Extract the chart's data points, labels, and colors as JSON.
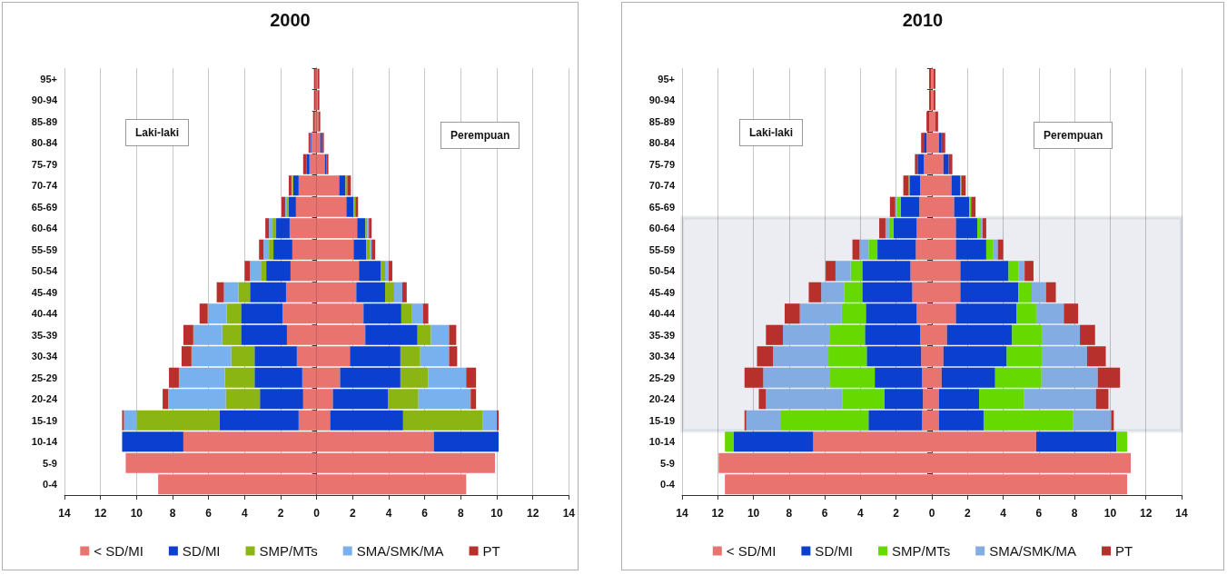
{
  "chart_data": [
    {
      "type": "bar",
      "title": "2000",
      "orientation": "horizontal",
      "stacked": true,
      "legend": "bottom",
      "grid": "x",
      "categories": [
        "95+",
        "90-94",
        "85-89",
        "80-84",
        "75-79",
        "70-74",
        "65-69",
        "60-64",
        "55-59",
        "50-54",
        "45-49",
        "40-44",
        "35-39",
        "30-34",
        "25-29",
        "20-24",
        "15-19",
        "10-14",
        "5-9",
        "0-4"
      ],
      "xlim": [
        -14,
        14
      ],
      "xticks": [
        {
          "value": -14,
          "label": "14"
        },
        {
          "value": -12,
          "label": "12"
        },
        {
          "value": -10,
          "label": "10"
        },
        {
          "value": -8,
          "label": "8"
        },
        {
          "value": -6,
          "label": "6"
        },
        {
          "value": -4,
          "label": "4"
        },
        {
          "value": -2,
          "label": "2"
        },
        0,
        2,
        4,
        6,
        8,
        10,
        12,
        14
      ],
      "annotations": [
        "Laki-laki",
        "Perempuan"
      ],
      "series": [
        {
          "name": "< SD/MI",
          "color": "#e8736f",
          "values": [
            -0.05,
            -0.05,
            -0.1,
            -0.3,
            -0.4,
            -1.0,
            -1.15,
            -1.5,
            -1.35,
            -1.45,
            -1.7,
            -1.9,
            -1.65,
            -1.1,
            -0.8,
            -0.75,
            -1.0,
            -7.4,
            -10.6,
            -8.8
          ]
        },
        {
          "color": "#e8736f",
          "values": [
            0.05,
            0.05,
            0.1,
            0.2,
            0.45,
            1.25,
            1.65,
            2.25,
            2.05,
            2.35,
            2.2,
            2.6,
            2.7,
            1.85,
            1.3,
            0.9,
            0.75,
            6.5,
            9.9,
            8.3
          ]
        },
        {
          "name": "SD/MI",
          "color": "#0a3fd0",
          "values": [
            0,
            0,
            0,
            -0.05,
            -0.15,
            -0.3,
            -0.4,
            -0.75,
            -1.05,
            -1.35,
            -2.0,
            -2.3,
            -2.55,
            -2.35,
            -2.65,
            -2.4,
            -4.4,
            -3.4,
            0,
            0
          ]
        },
        {
          "color": "#0a3fd0",
          "values": [
            0,
            0,
            0,
            0.1,
            0.1,
            0.35,
            0.4,
            0.45,
            0.7,
            1.2,
            1.6,
            2.1,
            2.9,
            2.8,
            3.35,
            3.05,
            4.05,
            3.6,
            0,
            0
          ]
        },
        {
          "name": "SMP/MTs",
          "color": "#8ab512",
          "values": [
            0,
            0,
            0,
            0,
            0,
            -0.05,
            -0.1,
            -0.2,
            -0.25,
            -0.3,
            -0.65,
            -0.8,
            -1.05,
            -1.3,
            -1.65,
            -1.9,
            -4.6,
            0,
            0,
            0
          ]
        },
        {
          "color": "#8ab512",
          "values": [
            0,
            0,
            0,
            0,
            0,
            0.1,
            0.1,
            0.1,
            0.2,
            0.25,
            0.5,
            0.6,
            0.75,
            1.1,
            1.55,
            1.7,
            4.4,
            0,
            0,
            0
          ]
        },
        {
          "name": "SMA/SMK/MA",
          "color": "#79b0ee",
          "values": [
            0,
            0,
            0,
            0,
            0,
            -0.05,
            -0.1,
            -0.2,
            -0.3,
            -0.6,
            -0.8,
            -1.05,
            -1.6,
            -2.2,
            -2.55,
            -3.2,
            -0.7,
            0,
            0,
            0
          ]
        },
        {
          "color": "#79b0ee",
          "values": [
            0,
            0,
            0,
            0,
            0,
            0,
            0,
            0.1,
            0.1,
            0.2,
            0.45,
            0.6,
            1.0,
            1.6,
            2.1,
            2.9,
            0.8,
            0,
            0,
            0
          ]
        },
        {
          "name": "PT",
          "color": "#b8302c",
          "values": [
            -0.1,
            -0.1,
            -0.1,
            -0.1,
            -0.2,
            -0.15,
            -0.2,
            -0.2,
            -0.25,
            -0.3,
            -0.4,
            -0.45,
            -0.55,
            -0.55,
            -0.55,
            -0.3,
            -0.1,
            0,
            0,
            0
          ]
        },
        {
          "color": "#b8302c",
          "values": [
            0.1,
            0.1,
            0.1,
            0.1,
            0.1,
            0.2,
            0.15,
            0.15,
            0.2,
            0.2,
            0.25,
            0.3,
            0.4,
            0.45,
            0.55,
            0.3,
            0.1,
            0,
            0,
            0
          ]
        }
      ]
    },
    {
      "type": "bar",
      "title": "2010",
      "orientation": "horizontal",
      "stacked": true,
      "legend": "bottom",
      "grid": "x",
      "categories": [
        "95+",
        "90-94",
        "85-89",
        "80-84",
        "75-79",
        "70-74",
        "65-69",
        "60-64",
        "55-59",
        "50-54",
        "45-49",
        "40-44",
        "35-39",
        "30-34",
        "25-29",
        "20-24",
        "15-19",
        "10-14",
        "5-9",
        "0-4"
      ],
      "xlim": [
        -14,
        14
      ],
      "xticks": [
        {
          "value": -14,
          "label": "14"
        },
        {
          "value": -12,
          "label": "12"
        },
        {
          "value": -10,
          "label": "10"
        },
        {
          "value": -8,
          "label": "8"
        },
        {
          "value": -6,
          "label": "6"
        },
        {
          "value": -4,
          "label": "4"
        },
        {
          "value": -2,
          "label": "2"
        },
        0,
        2,
        4,
        6,
        8,
        10,
        12,
        14
      ],
      "annotations": [
        "Laki-laki",
        "Perempuan"
      ],
      "bands": [
        {
          "axis": "y",
          "from": "60-64",
          "to": "15-19",
          "color": "#0d1f5c"
        }
      ],
      "series": [
        {
          "name": "< SD/MI",
          "color": "#e8736f",
          "values": [
            -0.05,
            -0.05,
            -0.15,
            -0.3,
            -0.45,
            -0.65,
            -0.7,
            -0.85,
            -0.9,
            -1.2,
            -1.1,
            -0.85,
            -0.65,
            -0.6,
            -0.55,
            -0.5,
            -0.55,
            -6.65,
            -11.95,
            -11.6
          ]
        },
        {
          "color": "#e8736f",
          "values": [
            0.1,
            0.1,
            0.2,
            0.4,
            0.65,
            1.1,
            1.25,
            1.35,
            1.35,
            1.6,
            1.6,
            1.35,
            0.85,
            0.65,
            0.55,
            0.4,
            0.4,
            5.85,
            11.15,
            10.95
          ]
        },
        {
          "name": "SD/MI",
          "color": "#0a3fd0",
          "values": [
            0,
            0,
            0,
            -0.15,
            -0.35,
            -0.6,
            -1.05,
            -1.3,
            -2.15,
            -2.7,
            -2.8,
            -2.85,
            -3.1,
            -3.05,
            -2.65,
            -2.15,
            -3.0,
            -4.45,
            0,
            0
          ]
        },
        {
          "color": "#0a3fd0",
          "values": [
            0,
            0,
            0,
            0.15,
            0.3,
            0.5,
            0.85,
            1.2,
            1.7,
            2.7,
            3.25,
            3.4,
            3.65,
            3.55,
            3.0,
            2.25,
            2.5,
            4.5,
            0,
            0
          ]
        },
        {
          "name": "SMP/MTs",
          "color": "#66d900",
          "values": [
            0,
            0,
            0,
            0,
            0,
            -0.05,
            -0.2,
            -0.25,
            -0.5,
            -0.65,
            -1.0,
            -1.35,
            -1.95,
            -2.15,
            -2.5,
            -2.35,
            -4.9,
            -0.5,
            0,
            0
          ]
        },
        {
          "color": "#66d900",
          "values": [
            0,
            0,
            0,
            0,
            0,
            0.05,
            0.1,
            0.2,
            0.4,
            0.55,
            0.75,
            1.1,
            1.7,
            2.0,
            2.6,
            2.5,
            5.0,
            0.6,
            0,
            0
          ]
        },
        {
          "name": "SMA/SMK/MA",
          "color": "#82ace2",
          "values": [
            0,
            0,
            0,
            0,
            0,
            0,
            -0.1,
            -0.2,
            -0.5,
            -0.85,
            -1.3,
            -2.35,
            -2.65,
            -3.1,
            -3.75,
            -4.3,
            -1.95,
            0,
            0,
            0
          ]
        },
        {
          "color": "#82ace2",
          "values": [
            0,
            0,
            0,
            0,
            0,
            0,
            0,
            0.1,
            0.25,
            0.35,
            0.8,
            1.55,
            2.1,
            2.5,
            3.15,
            4.05,
            2.15,
            0,
            0,
            0
          ]
        },
        {
          "name": "PT",
          "color": "#b8302c",
          "values": [
            -0.1,
            -0.1,
            -0.15,
            -0.15,
            -0.15,
            -0.3,
            -0.3,
            -0.35,
            -0.4,
            -0.55,
            -0.7,
            -0.85,
            -0.95,
            -0.9,
            -1.05,
            -0.4,
            -0.1,
            0,
            0,
            0
          ]
        },
        {
          "color": "#b8302c",
          "values": [
            0.1,
            0.1,
            0.15,
            0.2,
            0.2,
            0.25,
            0.25,
            0.2,
            0.3,
            0.5,
            0.55,
            0.8,
            0.85,
            1.05,
            1.25,
            0.7,
            0.15,
            0,
            0,
            0
          ]
        }
      ]
    }
  ]
}
